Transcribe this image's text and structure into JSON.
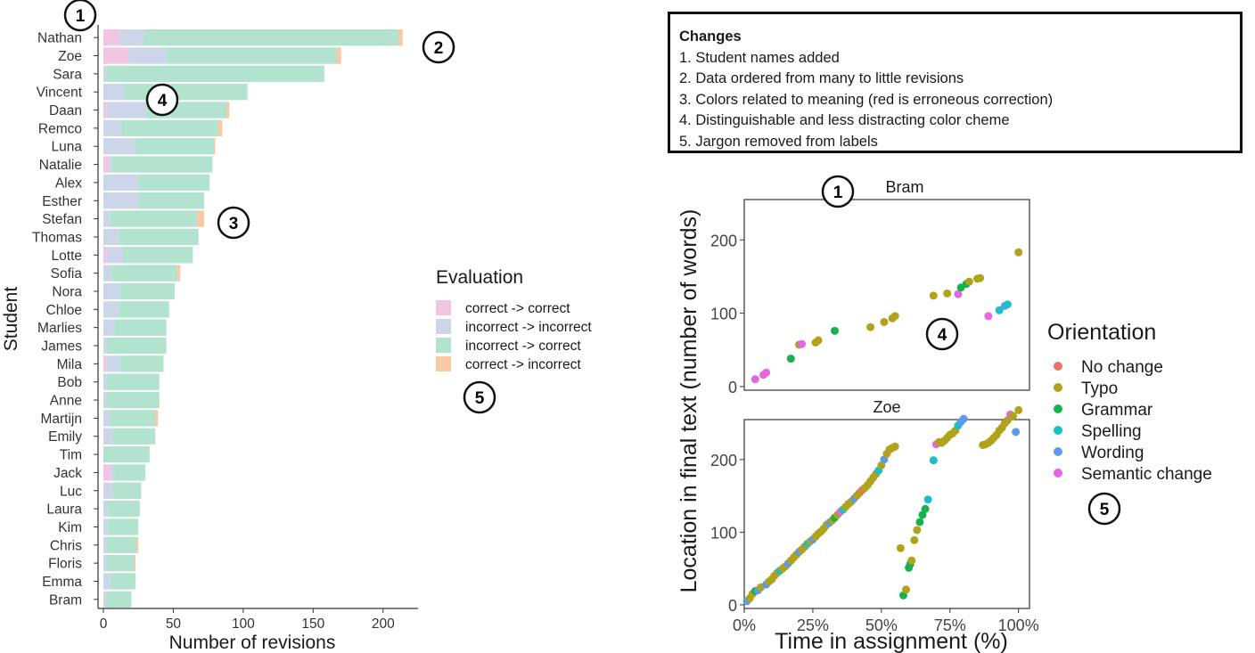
{
  "colors": {
    "correct_correct": "#f2c6e3",
    "incorrect_incorrect": "#cdd5e9",
    "incorrect_correct": "#b1e3ce",
    "correct_incorrect": "#f9c9a4",
    "no_change": "#e8756c",
    "typo": "#b1a21c",
    "grammar": "#18b24c",
    "spelling": "#1cbec7",
    "wording": "#5d9be9",
    "semantic_change": "#e268e0"
  },
  "changes": {
    "title": "Changes",
    "items": [
      "1. Student names added",
      "2. Data ordered from many to little revisions",
      "3. Colors related to meaning (red is erroneous correction)",
      "4. Distinguishable and less distracting color cheme",
      "5. Jargon removed from labels"
    ]
  },
  "annotations": {
    "bar_chart": [
      "1",
      "2",
      "4",
      "3",
      "5"
    ],
    "scatter": [
      "1",
      "4",
      "5"
    ]
  },
  "chart_data": [
    {
      "type": "bar",
      "stacked": true,
      "orientation": "horizontal",
      "title": "",
      "xlabel": "Number of revisions",
      "ylabel": "Student",
      "xlim": [
        0,
        225
      ],
      "xticks": [
        "0",
        "50",
        "100",
        "150",
        "200"
      ],
      "xtick_values": [
        0,
        50,
        100,
        150,
        200
      ],
      "legend_title": "Evaluation",
      "legend_position": "right",
      "categories": [
        "Nathan",
        "Zoe",
        "Sara",
        "Vincent",
        "Daan",
        "Remco",
        "Luna",
        "Natalie",
        "Alex",
        "Esther",
        "Stefan",
        "Thomas",
        "Lotte",
        "Sofia",
        "Nora",
        "Chloe",
        "Marlies",
        "James",
        "Mila",
        "Bob",
        "Anne",
        "Martijn",
        "Emily",
        "Tim",
        "Jack",
        "Luc",
        "Laura",
        "Kim",
        "Chris",
        "Floris",
        "Emma",
        "Bram"
      ],
      "series": [
        {
          "name": "correct -> correct",
          "color_key": "correct_correct",
          "values": [
            12,
            18,
            0,
            0,
            2,
            0,
            0,
            4,
            0,
            0,
            0,
            0,
            2,
            0,
            0,
            0,
            0,
            0,
            2,
            0,
            0,
            0,
            0,
            0,
            5,
            0,
            0,
            0,
            0,
            0,
            0,
            0
          ]
        },
        {
          "name": "incorrect -> incorrect",
          "color_key": "incorrect_incorrect",
          "values": [
            17,
            27,
            2,
            15,
            28,
            13,
            23,
            2,
            25,
            25,
            5,
            11,
            12,
            6,
            12,
            11,
            8,
            2,
            10,
            2,
            2,
            4,
            7,
            0,
            3,
            7,
            3,
            3,
            2,
            2,
            5,
            2
          ]
        },
        {
          "name": "incorrect -> correct",
          "color_key": "incorrect_correct",
          "values": [
            182,
            122,
            156,
            88,
            58,
            69,
            56,
            72,
            51,
            47,
            62,
            57,
            50,
            47,
            39,
            36,
            37,
            43,
            31,
            38,
            38,
            33,
            30,
            33,
            22,
            20,
            23,
            22,
            22,
            20,
            18,
            18
          ]
        },
        {
          "name": "correct -> incorrect",
          "color_key": "correct_incorrect",
          "values": [
            3,
            3,
            0,
            0,
            2,
            3,
            1,
            0,
            0,
            0,
            5,
            0,
            0,
            2,
            0,
            0,
            0,
            0,
            0,
            0,
            0,
            2,
            0,
            0,
            0,
            0,
            0,
            0,
            1,
            1,
            0,
            0
          ]
        }
      ]
    },
    {
      "type": "scatter",
      "xlabel": "Time in assignment (%)",
      "ylabel": "Location in final text (number of words)",
      "xlim": [
        0,
        104
      ],
      "ylim": [
        -5,
        255
      ],
      "xticks": [
        "0%",
        "25%",
        "50%",
        "75%",
        "100%"
      ],
      "xtick_values": [
        0,
        25,
        50,
        75,
        100
      ],
      "yticks": [
        "0",
        "100",
        "200"
      ],
      "ytick_values": [
        0,
        100,
        200
      ],
      "legend_title": "Orientation",
      "legend_position": "right",
      "legend": [
        {
          "name": "No change",
          "color_key": "no_change"
        },
        {
          "name": "Typo",
          "color_key": "typo"
        },
        {
          "name": "Grammar",
          "color_key": "grammar"
        },
        {
          "name": "Spelling",
          "color_key": "spelling"
        },
        {
          "name": "Wording",
          "color_key": "wording"
        },
        {
          "name": "Semantic change",
          "color_key": "semantic_change"
        }
      ],
      "panels": [
        {
          "name": "Bram",
          "points": [
            {
              "x": 4,
              "y": 10,
              "c": "semantic_change"
            },
            {
              "x": 7,
              "y": 16,
              "c": "semantic_change"
            },
            {
              "x": 8,
              "y": 19,
              "c": "semantic_change"
            },
            {
              "x": 17,
              "y": 38,
              "c": "grammar"
            },
            {
              "x": 20,
              "y": 57,
              "c": "typo"
            },
            {
              "x": 21,
              "y": 58,
              "c": "semantic_change"
            },
            {
              "x": 26,
              "y": 60,
              "c": "typo"
            },
            {
              "x": 27,
              "y": 63,
              "c": "typo"
            },
            {
              "x": 33,
              "y": 76,
              "c": "grammar"
            },
            {
              "x": 46,
              "y": 81,
              "c": "typo"
            },
            {
              "x": 51,
              "y": 88,
              "c": "typo"
            },
            {
              "x": 54,
              "y": 93,
              "c": "typo"
            },
            {
              "x": 55,
              "y": 96,
              "c": "typo"
            },
            {
              "x": 69,
              "y": 124,
              "c": "typo"
            },
            {
              "x": 74,
              "y": 127,
              "c": "typo"
            },
            {
              "x": 78,
              "y": 126,
              "c": "semantic_change"
            },
            {
              "x": 79,
              "y": 135,
              "c": "grammar"
            },
            {
              "x": 81,
              "y": 140,
              "c": "grammar"
            },
            {
              "x": 82,
              "y": 143,
              "c": "typo"
            },
            {
              "x": 85,
              "y": 147,
              "c": "typo"
            },
            {
              "x": 86,
              "y": 148,
              "c": "typo"
            },
            {
              "x": 89,
              "y": 96,
              "c": "semantic_change"
            },
            {
              "x": 93,
              "y": 104,
              "c": "spelling"
            },
            {
              "x": 95,
              "y": 110,
              "c": "wording"
            },
            {
              "x": 96,
              "y": 112,
              "c": "spelling"
            },
            {
              "x": 100,
              "y": 183,
              "c": "typo"
            }
          ]
        },
        {
          "name": "Zoe",
          "points": [
            {
              "x": 1,
              "y": 5,
              "c": "wording"
            },
            {
              "x": 2,
              "y": 9,
              "c": "typo"
            },
            {
              "x": 3,
              "y": 15,
              "c": "typo"
            },
            {
              "x": 4,
              "y": 19,
              "c": "grammar"
            },
            {
              "x": 5,
              "y": 20,
              "c": "wording"
            },
            {
              "x": 6,
              "y": 24,
              "c": "typo"
            },
            {
              "x": 8,
              "y": 28,
              "c": "wording"
            },
            {
              "x": 9,
              "y": 32,
              "c": "typo"
            },
            {
              "x": 10,
              "y": 35,
              "c": "typo"
            },
            {
              "x": 11,
              "y": 40,
              "c": "typo"
            },
            {
              "x": 12,
              "y": 44,
              "c": "typo"
            },
            {
              "x": 13,
              "y": 47,
              "c": "spelling"
            },
            {
              "x": 14,
              "y": 50,
              "c": "typo"
            },
            {
              "x": 15,
              "y": 53,
              "c": "typo"
            },
            {
              "x": 16,
              "y": 57,
              "c": "wording"
            },
            {
              "x": 17,
              "y": 61,
              "c": "typo"
            },
            {
              "x": 18,
              "y": 65,
              "c": "typo"
            },
            {
              "x": 19,
              "y": 69,
              "c": "typo"
            },
            {
              "x": 20,
              "y": 73,
              "c": "wording"
            },
            {
              "x": 21,
              "y": 76,
              "c": "typo"
            },
            {
              "x": 22,
              "y": 80,
              "c": "typo"
            },
            {
              "x": 23,
              "y": 84,
              "c": "spelling"
            },
            {
              "x": 24,
              "y": 87,
              "c": "typo"
            },
            {
              "x": 25,
              "y": 90,
              "c": "wording"
            },
            {
              "x": 26,
              "y": 94,
              "c": "typo"
            },
            {
              "x": 27,
              "y": 98,
              "c": "typo"
            },
            {
              "x": 28,
              "y": 101,
              "c": "typo"
            },
            {
              "x": 29,
              "y": 105,
              "c": "typo"
            },
            {
              "x": 30,
              "y": 110,
              "c": "typo"
            },
            {
              "x": 31,
              "y": 113,
              "c": "wording"
            },
            {
              "x": 32,
              "y": 116,
              "c": "typo"
            },
            {
              "x": 33,
              "y": 120,
              "c": "grammar"
            },
            {
              "x": 34,
              "y": 124,
              "c": "typo"
            },
            {
              "x": 35,
              "y": 128,
              "c": "semantic_change"
            },
            {
              "x": 36,
              "y": 131,
              "c": "spelling"
            },
            {
              "x": 37,
              "y": 135,
              "c": "typo"
            },
            {
              "x": 38,
              "y": 139,
              "c": "typo"
            },
            {
              "x": 39,
              "y": 142,
              "c": "typo"
            },
            {
              "x": 40,
              "y": 146,
              "c": "wording"
            },
            {
              "x": 41,
              "y": 150,
              "c": "typo"
            },
            {
              "x": 42,
              "y": 154,
              "c": "typo"
            },
            {
              "x": 43,
              "y": 158,
              "c": "no_change"
            },
            {
              "x": 44,
              "y": 161,
              "c": "typo"
            },
            {
              "x": 45,
              "y": 165,
              "c": "typo"
            },
            {
              "x": 46,
              "y": 170,
              "c": "typo"
            },
            {
              "x": 47,
              "y": 175,
              "c": "typo"
            },
            {
              "x": 48,
              "y": 180,
              "c": "typo"
            },
            {
              "x": 49,
              "y": 185,
              "c": "spelling"
            },
            {
              "x": 50,
              "y": 192,
              "c": "typo"
            },
            {
              "x": 51,
              "y": 200,
              "c": "wording"
            },
            {
              "x": 52,
              "y": 208,
              "c": "typo"
            },
            {
              "x": 53,
              "y": 214,
              "c": "typo"
            },
            {
              "x": 54,
              "y": 216,
              "c": "typo"
            },
            {
              "x": 55,
              "y": 218,
              "c": "typo"
            },
            {
              "x": 57,
              "y": 78,
              "c": "typo"
            },
            {
              "x": 58,
              "y": 13,
              "c": "grammar"
            },
            {
              "x": 59,
              "y": 21,
              "c": "typo"
            },
            {
              "x": 60,
              "y": 51,
              "c": "grammar"
            },
            {
              "x": 60.5,
              "y": 56,
              "c": "grammar"
            },
            {
              "x": 61,
              "y": 61,
              "c": "typo"
            },
            {
              "x": 62,
              "y": 89,
              "c": "typo"
            },
            {
              "x": 63,
              "y": 103,
              "c": "typo"
            },
            {
              "x": 64,
              "y": 114,
              "c": "grammar"
            },
            {
              "x": 65,
              "y": 124,
              "c": "grammar"
            },
            {
              "x": 66,
              "y": 132,
              "c": "grammar"
            },
            {
              "x": 67,
              "y": 145,
              "c": "spelling"
            },
            {
              "x": 69,
              "y": 199,
              "c": "spelling"
            },
            {
              "x": 70,
              "y": 221,
              "c": "semantic_change"
            },
            {
              "x": 71,
              "y": 224,
              "c": "typo"
            },
            {
              "x": 72,
              "y": 223,
              "c": "typo"
            },
            {
              "x": 73,
              "y": 226,
              "c": "typo"
            },
            {
              "x": 74,
              "y": 230,
              "c": "typo"
            },
            {
              "x": 75,
              "y": 234,
              "c": "typo"
            },
            {
              "x": 76,
              "y": 236,
              "c": "typo"
            },
            {
              "x": 77,
              "y": 240,
              "c": "typo"
            },
            {
              "x": 78,
              "y": 247,
              "c": "spelling"
            },
            {
              "x": 79,
              "y": 252,
              "c": "wording"
            },
            {
              "x": 80,
              "y": 256,
              "c": "wording"
            },
            {
              "x": 87,
              "y": 220,
              "c": "typo"
            },
            {
              "x": 88,
              "y": 221,
              "c": "typo"
            },
            {
              "x": 89,
              "y": 223,
              "c": "typo"
            },
            {
              "x": 90,
              "y": 226,
              "c": "typo"
            },
            {
              "x": 91,
              "y": 230,
              "c": "typo"
            },
            {
              "x": 92,
              "y": 234,
              "c": "typo"
            },
            {
              "x": 93,
              "y": 240,
              "c": "typo"
            },
            {
              "x": 94,
              "y": 244,
              "c": "typo"
            },
            {
              "x": 95,
              "y": 250,
              "c": "typo"
            },
            {
              "x": 96,
              "y": 254,
              "c": "typo"
            },
            {
              "x": 97,
              "y": 262,
              "c": "semantic_change"
            },
            {
              "x": 98,
              "y": 260,
              "c": "typo"
            },
            {
              "x": 99,
              "y": 238,
              "c": "wording"
            },
            {
              "x": 100,
              "y": 268,
              "c": "typo"
            }
          ]
        }
      ]
    }
  ]
}
